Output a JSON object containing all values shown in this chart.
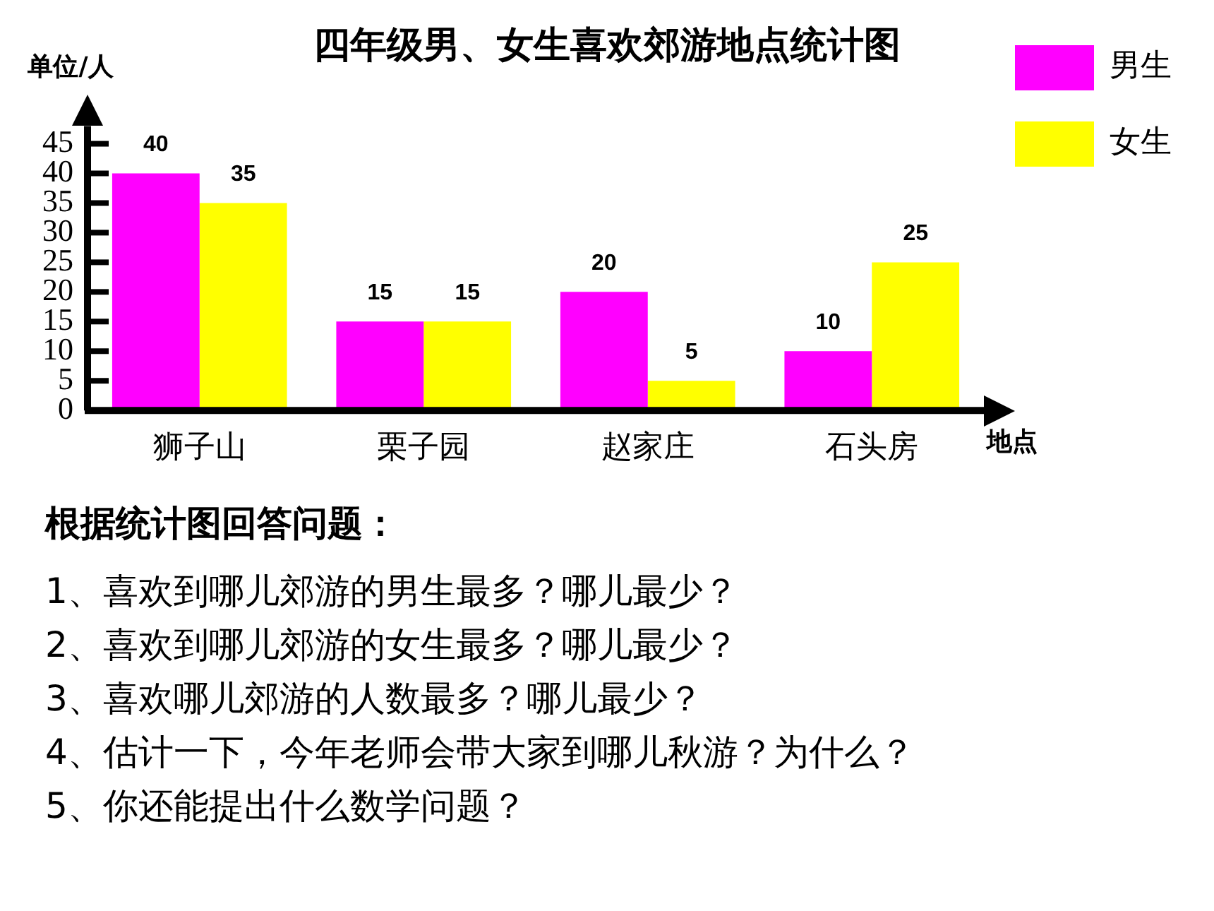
{
  "chart_data": {
    "type": "bar",
    "title": "四年级男、女生喜欢郊游地点统计图",
    "xlabel": "地点",
    "ylabel": "单位/人",
    "categories": [
      "狮子山",
      "栗子园",
      "赵家庄",
      "石头房"
    ],
    "series": [
      {
        "name": "男生",
        "color": "#ff00ff",
        "values": [
          40,
          15,
          20,
          10
        ]
      },
      {
        "name": "女生",
        "color": "#ffff00",
        "values": [
          35,
          15,
          5,
          25
        ]
      }
    ],
    "ylim": [
      0,
      48
    ],
    "yticks": [
      0,
      5,
      10,
      15,
      20,
      25,
      30,
      35,
      40,
      45
    ],
    "grid": false,
    "legend": "top right",
    "data_labels": true,
    "annotations": [
      "根据统计图回答问题：",
      "1、喜欢到哪儿郊游的男生最多？哪儿最少？",
      "2、喜欢到哪儿郊游的女生最多？哪儿最少？",
      "3、喜欢哪儿郊游的人数最多？哪儿最少？",
      "4、估计一下，今年老师会带大家到哪儿秋游？为什么？",
      "5、你还能提出什么数学问题？"
    ]
  }
}
